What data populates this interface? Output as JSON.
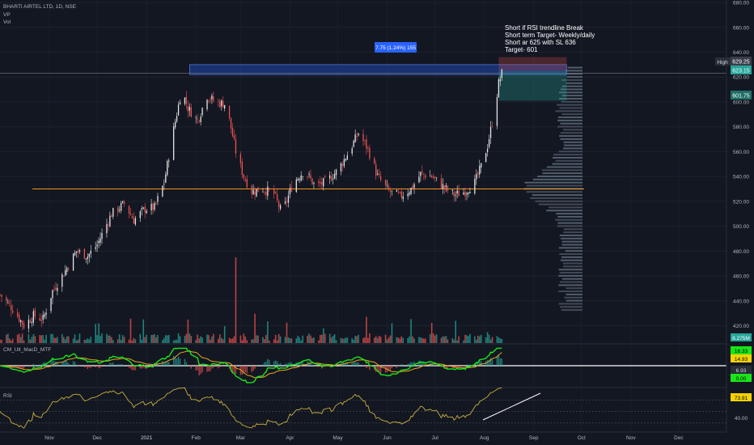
{
  "header": {
    "symbol_line": "BHARTI AIRTEL LTD, 1D, NSE",
    "vp_label": "VP",
    "vol_label": "Vol"
  },
  "annotation": {
    "lines": [
      "Short if RSI trendline Break",
      "Short term Target- Weekly/daily",
      "Short ar 625 with SL 636",
      "Target- 601"
    ]
  },
  "measure_label": "7.75 (1.24%) 155",
  "price_axis": {
    "ticks": [
      "680.00",
      "660.00",
      "640.00",
      "620.00",
      "600.00",
      "580.00",
      "560.00",
      "540.00",
      "520.00",
      "500.00",
      "480.00",
      "460.00",
      "440.00",
      "420.00"
    ],
    "tick_values": [
      680,
      660,
      640,
      620,
      600,
      580,
      560,
      540,
      520,
      500,
      480,
      460,
      440,
      420
    ],
    "min": 406,
    "max": 682
  },
  "badges": {
    "high_label": "High",
    "high_value": "629.25",
    "last_price": "623.15",
    "target_price": "601.75",
    "volume": "8.275M",
    "macd_a": "16.33",
    "macd_b": "14.93",
    "macd_c": "6.93",
    "macd_d": "0.00",
    "rsi_value": "73.91"
  },
  "indicators": {
    "macd_title": "CM_Ult_MacD_MTF",
    "rsi_title": "RSI",
    "rsi_tick": "40.00"
  },
  "time_axis": {
    "labels": [
      "Nov",
      "Dec",
      "2021",
      "Feb",
      "Mar",
      "Apr",
      "May",
      "Jun",
      "Jul",
      "Aug",
      "Sep",
      "Oct",
      "Nov",
      "Dec"
    ]
  },
  "colors": {
    "background": "#131722",
    "up": "#26a69a",
    "down": "#ef5350",
    "up_candle": "#e6e6e6",
    "horizontal_line": "#f7931a",
    "zone": "#2962ff",
    "rsi": "#c8b03c",
    "macd_fast": "#19e619",
    "macd_slow": "#e6a820"
  },
  "chart_data": {
    "type": "candlestick",
    "period": "1D",
    "x_start": "2020-10-01",
    "x_end": "2021-12-31",
    "horizontal_level": 530,
    "zone": {
      "from": "2021-01-28",
      "to": "2021-08-12",
      "low": 622,
      "high": 630
    },
    "short_setup": {
      "entry": 625,
      "stop": 636,
      "target": 601
    },
    "price_path": [
      {
        "date": "2020-10-01",
        "close": 445
      },
      {
        "date": "2020-10-10",
        "close": 432
      },
      {
        "date": "2020-10-16",
        "close": 420
      },
      {
        "date": "2020-10-22",
        "close": 428
      },
      {
        "date": "2020-10-28",
        "close": 425
      },
      {
        "date": "2020-11-03",
        "close": 448
      },
      {
        "date": "2020-11-10",
        "close": 462
      },
      {
        "date": "2020-11-18",
        "close": 480
      },
      {
        "date": "2020-11-25",
        "close": 476
      },
      {
        "date": "2020-12-01",
        "close": 485
      },
      {
        "date": "2020-12-10",
        "close": 510
      },
      {
        "date": "2020-12-18",
        "close": 518
      },
      {
        "date": "2020-12-24",
        "close": 505
      },
      {
        "date": "2020-12-31",
        "close": 514
      },
      {
        "date": "2021-01-06",
        "close": 515
      },
      {
        "date": "2021-01-12",
        "close": 535
      },
      {
        "date": "2021-01-18",
        "close": 578
      },
      {
        "date": "2021-01-23",
        "close": 610
      },
      {
        "date": "2021-01-27",
        "close": 595
      },
      {
        "date": "2021-02-02",
        "close": 585
      },
      {
        "date": "2021-02-08",
        "close": 605
      },
      {
        "date": "2021-02-13",
        "close": 600
      },
      {
        "date": "2021-02-20",
        "close": 598
      },
      {
        "date": "2021-02-26",
        "close": 560
      },
      {
        "date": "2021-03-03",
        "close": 540
      },
      {
        "date": "2021-03-08",
        "close": 528
      },
      {
        "date": "2021-03-15",
        "close": 530
      },
      {
        "date": "2021-03-22",
        "close": 526
      },
      {
        "date": "2021-03-27",
        "close": 510
      },
      {
        "date": "2021-04-03",
        "close": 535
      },
      {
        "date": "2021-04-10",
        "close": 545
      },
      {
        "date": "2021-04-17",
        "close": 532
      },
      {
        "date": "2021-04-24",
        "close": 536
      },
      {
        "date": "2021-05-01",
        "close": 545
      },
      {
        "date": "2021-05-08",
        "close": 560
      },
      {
        "date": "2021-05-14",
        "close": 575
      },
      {
        "date": "2021-05-20",
        "close": 562
      },
      {
        "date": "2021-05-26",
        "close": 540
      },
      {
        "date": "2021-06-02",
        "close": 528
      },
      {
        "date": "2021-06-09",
        "close": 524
      },
      {
        "date": "2021-06-16",
        "close": 530
      },
      {
        "date": "2021-06-22",
        "close": 542
      },
      {
        "date": "2021-06-29",
        "close": 540
      },
      {
        "date": "2021-07-06",
        "close": 532
      },
      {
        "date": "2021-07-13",
        "close": 525
      },
      {
        "date": "2021-07-20",
        "close": 528
      },
      {
        "date": "2021-07-26",
        "close": 535
      },
      {
        "date": "2021-07-30",
        "close": 548
      },
      {
        "date": "2021-08-03",
        "close": 565
      },
      {
        "date": "2021-08-07",
        "close": 590
      },
      {
        "date": "2021-08-10",
        "close": 615
      },
      {
        "date": "2021-08-12",
        "close": 623
      }
    ]
  }
}
